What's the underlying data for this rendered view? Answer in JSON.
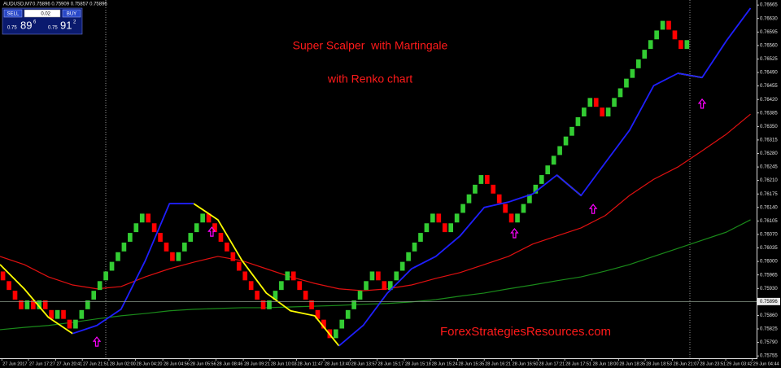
{
  "header": {
    "symbol": "AUDUSD,M7",
    "ohlc": "0.75896 0.75909 0.75857 0.75896"
  },
  "trade_panel": {
    "sell": "SELL",
    "lot": "0.02",
    "buy": "BUY",
    "sell_prefix": "0.75",
    "sell_big": "89",
    "sell_sup": "6",
    "buy_prefix": "0.75",
    "buy_big": "91",
    "buy_sup": "2"
  },
  "chart_data": {
    "type": "renko",
    "title": "Super Scalper  with Martingale",
    "subtitle": "with Renko chart",
    "watermark": "ForexStrategiesResources.com",
    "brick_size": 0.00025,
    "up_color": "#33cc33",
    "down_color": "#ff0000",
    "values": [
      0.7595,
      0.75925,
      0.759,
      0.75875,
      0.759,
      0.75875,
      0.759,
      0.75875,
      0.7585,
      0.75875,
      0.7585,
      0.75825,
      0.7585,
      0.75875,
      0.759,
      0.75925,
      0.7595,
      0.75975,
      0.76,
      0.76025,
      0.7605,
      0.76075,
      0.761,
      0.76125,
      0.761,
      0.76075,
      0.7605,
      0.76025,
      0.76,
      0.76025,
      0.7605,
      0.76075,
      0.761,
      0.76125,
      0.761,
      0.76075,
      0.7605,
      0.76025,
      0.76,
      0.75975,
      0.7595,
      0.75925,
      0.759,
      0.75875,
      0.759,
      0.75925,
      0.7595,
      0.75975,
      0.7595,
      0.75925,
      0.759,
      0.75875,
      0.7585,
      0.75825,
      0.758,
      0.75825,
      0.7585,
      0.75875,
      0.759,
      0.75925,
      0.7595,
      0.75975,
      0.7595,
      0.75925,
      0.7595,
      0.75975,
      0.76,
      0.76025,
      0.7605,
      0.76075,
      0.761,
      0.76125,
      0.761,
      0.76075,
      0.761,
      0.76125,
      0.7615,
      0.76175,
      0.762,
      0.76225,
      0.762,
      0.76175,
      0.7615,
      0.76125,
      0.761,
      0.76125,
      0.7615,
      0.76175,
      0.762,
      0.76225,
      0.7625,
      0.76275,
      0.763,
      0.76325,
      0.7635,
      0.76375,
      0.764,
      0.76425,
      0.764,
      0.76375,
      0.764,
      0.76425,
      0.7645,
      0.76475,
      0.765,
      0.76525,
      0.7655,
      0.76575,
      0.766,
      0.76625,
      0.766,
      0.76575,
      0.7655,
      0.76575
    ],
    "ma_x": [
      0,
      4,
      8,
      12,
      16,
      20,
      24,
      28,
      32,
      36,
      40,
      44,
      48,
      52,
      56,
      60,
      64,
      68,
      72,
      76,
      80,
      84,
      88,
      92,
      96,
      100,
      104,
      108,
      112,
      116,
      120,
      124
    ],
    "series": [
      {
        "color": "#1f1fff",
        "values": [
          null,
          null,
          null,
          0.75813,
          0.75834,
          0.75876,
          0.76002,
          0.7615,
          0.7615,
          null,
          null,
          null,
          null,
          null,
          0.75781,
          0.75834,
          0.75918,
          0.75981,
          0.76013,
          0.76066,
          0.7614,
          0.76154,
          0.76175,
          0.76224,
          0.76171,
          0.76256,
          0.7634,
          0.76456,
          0.76488,
          0.76477,
          0.76572,
          0.76657
        ]
      },
      {
        "color": "#ffff00",
        "values": [
          0.75992,
          0.75929,
          0.75855,
          0.75813,
          null,
          null,
          null,
          null,
          0.7615,
          0.76108,
          0.76002,
          0.75918,
          0.75872,
          0.75859,
          0.75781,
          null,
          null,
          null,
          null,
          null,
          null,
          null,
          null,
          0.76224,
          0.76171,
          null,
          null,
          null,
          0.76488,
          0.76477,
          null,
          null
        ]
      },
      {
        "color": "#e01010",
        "values": [
          0.76013,
          0.75992,
          0.7596,
          0.75939,
          0.75929,
          0.75935,
          0.7596,
          0.75981,
          0.75998,
          0.76013,
          0.76002,
          0.75981,
          0.7596,
          0.75943,
          0.75929,
          0.75924,
          0.75929,
          0.75939,
          0.75956,
          0.75971,
          0.75992,
          0.76013,
          0.76045,
          0.76066,
          0.76087,
          0.76119,
          0.76171,
          0.76213,
          0.76245,
          0.76287,
          0.7633,
          0.76382
        ]
      },
      {
        "color": "#1a8a1a",
        "values": [
          0.75823,
          0.75829,
          0.75834,
          0.75842,
          0.75851,
          0.75859,
          0.75865,
          0.75872,
          0.75876,
          0.75878,
          0.7588,
          0.7588,
          0.75882,
          0.75884,
          0.75886,
          0.75889,
          0.75891,
          0.75895,
          0.75901,
          0.7591,
          0.75918,
          0.75929,
          0.75939,
          0.7595,
          0.7596,
          0.75975,
          0.75992,
          0.76013,
          0.76034,
          0.76055,
          0.76076,
          0.76108
        ]
      }
    ],
    "signals": {
      "color": "#ff00ff",
      "x": [
        16,
        35,
        85,
        98,
        116
      ],
      "y": [
        0.75791,
        0.76076,
        0.76072,
        0.76135,
        0.76408
      ]
    },
    "last_price": 0.75896,
    "xlim": [
      0,
      125
    ],
    "ylim": [
      0.75749,
      0.76678
    ],
    "yticks": [
      0.76665,
      {
        "value": 0.7663,
        "label": "0.76630"
      },
      0.76595,
      {
        "value": 0.7656,
        "label": "0.76560"
      },
      0.76525,
      {
        "value": 0.7649,
        "label": "0.76490"
      },
      0.76455,
      {
        "value": 0.7642,
        "label": "0.76420"
      },
      0.76385,
      {
        "value": 0.7635,
        "label": "0.76350"
      },
      0.76315,
      {
        "value": 0.7628,
        "label": "0.76280"
      },
      0.76245,
      {
        "value": 0.7621,
        "label": "0.76210"
      },
      0.76175,
      {
        "value": 0.7614,
        "label": "0.76140"
      },
      0.76105,
      {
        "value": 0.7607,
        "label": "0.76070"
      },
      0.76035,
      {
        "value": 0.76,
        "label": "0.76000"
      },
      0.75965,
      {
        "value": 0.7593,
        "label": "0.75930"
      },
      {
        "value": 0.7586,
        "label": "0.75860"
      },
      0.75825,
      {
        "value": 0.7579,
        "label": "0.75790"
      },
      0.75755
    ],
    "xticks": [
      {
        "value": 0.3,
        "label": "27 Jun 2017"
      },
      {
        "value": 4.7,
        "label": "27 Jun 17:27"
      },
      {
        "value": 9.2,
        "label": "27 Jun 20:41"
      },
      {
        "value": 13.6,
        "label": "27 Jun 21:51"
      },
      {
        "value": 18.0,
        "label": "28 Jun 02:00"
      },
      {
        "value": 22.4,
        "label": "28 Jun 04:20"
      },
      {
        "value": 26.9,
        "label": "28 Jun 04:56"
      },
      {
        "value": 31.3,
        "label": "28 Jun 05:56"
      },
      {
        "value": 35.7,
        "label": "28 Jun 08:46"
      },
      {
        "value": 40.2,
        "label": "28 Jun 09:21"
      },
      {
        "value": 44.6,
        "label": "28 Jun 10:03"
      },
      {
        "value": 49.0,
        "label": "28 Jun 11:47"
      },
      {
        "value": 53.5,
        "label": "28 Jun 13:40"
      },
      {
        "value": 57.9,
        "label": "28 Jun 13:57"
      },
      {
        "value": 62.3,
        "label": "28 Jun 15:17"
      },
      {
        "value": 66.8,
        "label": "28 Jun 15:18"
      },
      {
        "value": 71.2,
        "label": "28 Jun 15:24"
      },
      {
        "value": 75.6,
        "label": "28 Jun 15:35"
      },
      {
        "value": 80.0,
        "label": "28 Jun 16:21"
      },
      {
        "value": 84.5,
        "label": "28 Jun 16:50"
      },
      {
        "value": 88.9,
        "label": "28 Jun 17:21"
      },
      {
        "value": 93.3,
        "label": "28 Jun 17:51"
      },
      {
        "value": 97.8,
        "label": "28 Jun 18:00"
      },
      {
        "value": 102.2,
        "label": "28 Jun 18:35"
      },
      {
        "value": 106.6,
        "label": "28 Jun 18:53"
      },
      {
        "value": 111.1,
        "label": "28 Jun 21:07"
      },
      {
        "value": 115.5,
        "label": "28 Jun 23:51"
      },
      {
        "value": 119.9,
        "label": "29 Jun 03:42"
      },
      {
        "value": 124.3,
        "label": "29 Jun 04:44"
      }
    ]
  }
}
